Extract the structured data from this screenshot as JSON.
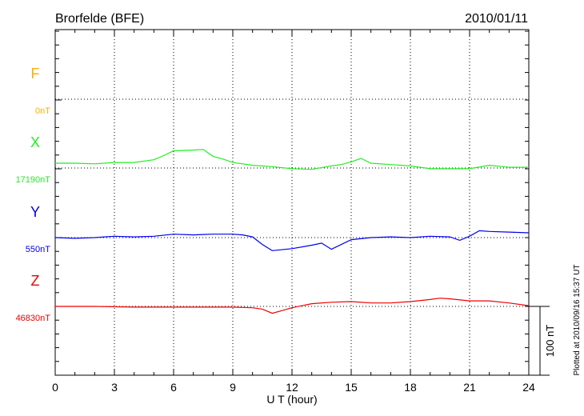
{
  "chart_data": {
    "type": "line",
    "title": "Brorfelde (BFE)",
    "date": "2010/01/11",
    "xlabel": "U T (hour)",
    "xlim": [
      0,
      24
    ],
    "xticks": [
      "0",
      "3",
      "6",
      "9",
      "12",
      "15",
      "18",
      "21",
      "24"
    ],
    "scale_bar_label": "100 nT",
    "scale_bar_nT": 100,
    "footer": "Plotted at 2010/09/16 15:37 UT",
    "grid": true,
    "series": [
      {
        "name": "F",
        "baseline_label": "0nT",
        "color": "#ffb000",
        "x": [],
        "y": []
      },
      {
        "name": "X",
        "baseline_label": "17190nT",
        "color": "#22ee22",
        "x": [
          0,
          1,
          2,
          3,
          4,
          5,
          5.5,
          6,
          7,
          7.5,
          8,
          8.5,
          9,
          10,
          11,
          12,
          13,
          14,
          14.5,
          15,
          15.5,
          16,
          17,
          18,
          19,
          20,
          21,
          22,
          23,
          24
        ],
        "y": [
          7,
          7,
          6,
          8,
          8,
          12,
          18,
          25,
          26,
          27,
          17,
          13,
          8,
          4,
          2,
          -1,
          -2,
          3,
          5,
          9,
          14,
          7,
          5,
          3,
          -1,
          -1,
          -1,
          4,
          1,
          1
        ]
      },
      {
        "name": "Y",
        "baseline_label": "550nT",
        "color": "#0000ee",
        "x": [
          0,
          1,
          2,
          3,
          4,
          5,
          6,
          7,
          8,
          9,
          9.5,
          10,
          10.5,
          11,
          12,
          13,
          13.5,
          14,
          15,
          16,
          17,
          18,
          19,
          20,
          20.5,
          21,
          21.5,
          22,
          23,
          24
        ],
        "y": [
          0,
          -1,
          0,
          2,
          1,
          2,
          5,
          4,
          5,
          5,
          4,
          1,
          -10,
          -19,
          -16,
          -11,
          -8,
          -17,
          -3,
          0,
          1,
          0,
          2,
          1,
          -4,
          2,
          10,
          9,
          8,
          7
        ]
      },
      {
        "name": "Z",
        "baseline_label": "46830nT",
        "color": "#ee0000",
        "x": [
          0,
          2,
          4,
          6,
          8,
          9,
          10,
          10.5,
          11,
          11.5,
          12,
          13,
          14,
          15,
          16,
          17,
          18,
          19,
          19.5,
          20,
          21,
          22,
          23,
          24
        ],
        "y": [
          0,
          0,
          -1,
          -1,
          -1,
          -1,
          -2,
          -4,
          -10,
          -6,
          -2,
          4,
          6,
          7,
          5,
          5,
          7,
          10,
          12,
          11,
          8,
          8,
          5,
          1
        ]
      }
    ]
  }
}
